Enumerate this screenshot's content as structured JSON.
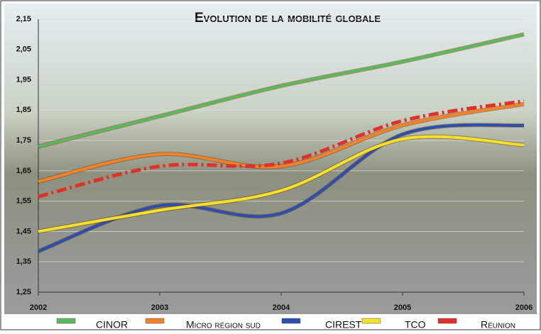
{
  "chart_data": {
    "type": "line",
    "title": "Evolution de la mobilité globale",
    "x": [
      2002,
      2003,
      2004,
      2005,
      2006
    ],
    "series": [
      {
        "name": "CINOR",
        "color": "#5cb85c",
        "values": [
          1.73,
          1.83,
          1.93,
          2.01,
          2.1
        ]
      },
      {
        "name": "Micro région sud",
        "color": "#f0822a",
        "values": [
          1.615,
          1.705,
          1.665,
          1.8,
          1.87
        ]
      },
      {
        "name": "CIREST",
        "color": "#2a4fb0",
        "values": [
          1.385,
          1.535,
          1.51,
          1.77,
          1.8
        ]
      },
      {
        "name": "TCO",
        "color": "#f2e22a",
        "values": [
          1.45,
          1.52,
          1.585,
          1.755,
          1.735
        ]
      },
      {
        "name": "Réunion",
        "color": "#e0302a",
        "dashed": true,
        "values": [
          1.565,
          1.665,
          1.675,
          1.815,
          1.88
        ]
      }
    ],
    "xlim": [
      2002,
      2006
    ],
    "xticks": [
      2002,
      2003,
      2004,
      2005,
      2006
    ],
    "ylim": [
      1.25,
      2.15
    ],
    "yticks": [
      {
        "value": 1.25,
        "label": "1,25"
      },
      {
        "value": 1.35,
        "label": "1,35"
      },
      {
        "value": 1.45,
        "label": "1,45"
      },
      {
        "value": 1.55,
        "label": "1,55"
      },
      {
        "value": 1.65,
        "label": "1,65"
      },
      {
        "value": 1.75,
        "label": "1,75"
      },
      {
        "value": 1.85,
        "label": "1,85"
      },
      {
        "value": 1.95,
        "label": "1,95"
      },
      {
        "value": 2.05,
        "label": "2,05"
      },
      {
        "value": 2.15,
        "label": "2,15"
      }
    ],
    "grid": true
  }
}
